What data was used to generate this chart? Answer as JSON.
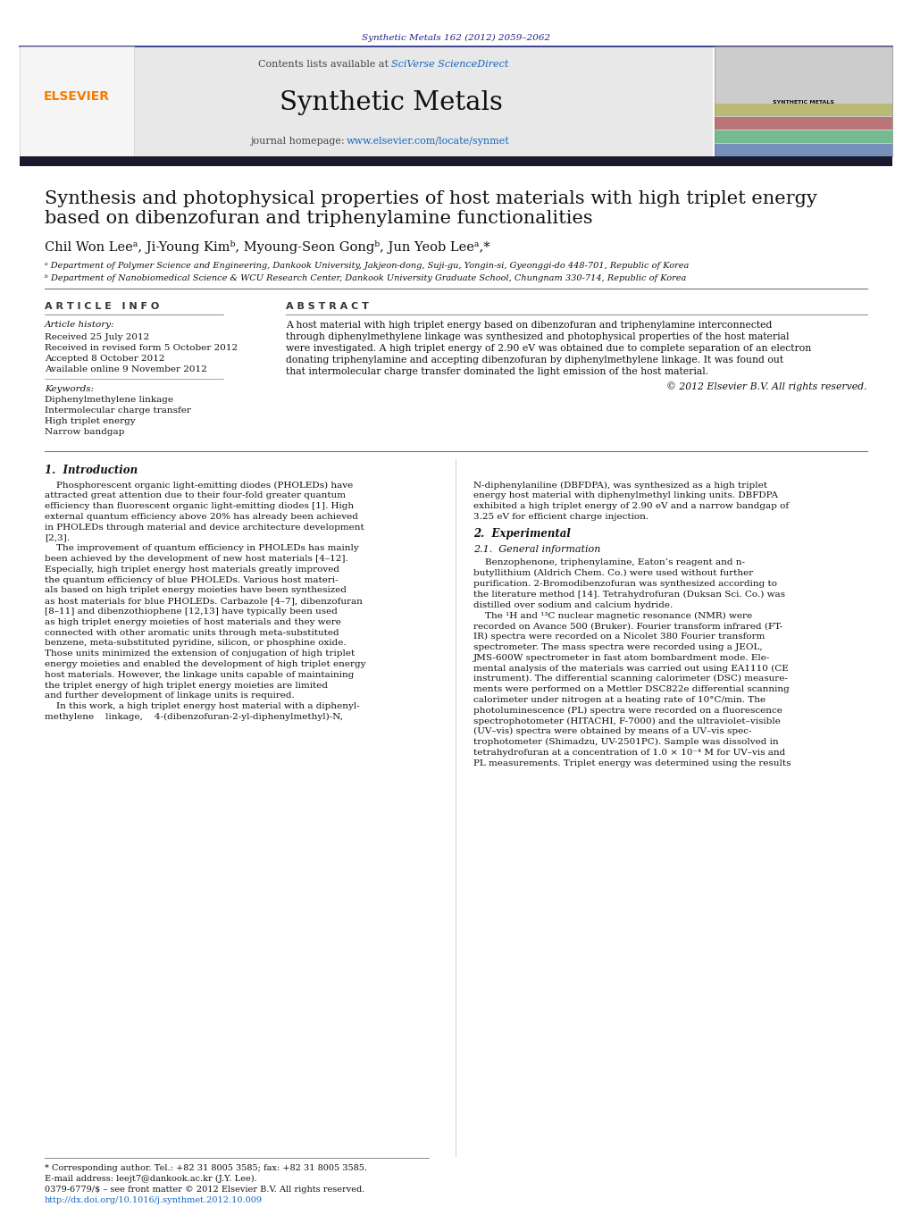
{
  "bg_color": "#ffffff",
  "top_journal_ref": "Synthetic Metals 162 (2012) 2059–2062",
  "top_journal_ref_color": "#1a237e",
  "header_bg": "#e8e8e8",
  "header_border_color": "#1a237e",
  "elsevier_color": "#f57c00",
  "journal_name": "Synthetic Metals",
  "journal_url": "www.elsevier.com/locate/synmet",
  "journal_url_color": "#1565c0",
  "contents_text": "Contents lists available at ",
  "sciverse_text": "SciVerse ScienceDirect",
  "sciverse_color": "#1565c0",
  "dark_bar_color": "#1a1a2e",
  "article_title_line1": "Synthesis and photophysical properties of host materials with high triplet energy",
  "article_title_line2": "based on dibenzofuran and triphenylamine functionalities",
  "authors_full": "Chil Won Leeᵃ, Ji-Young Kimᵇ, Myoung-Seon Gongᵇ, Jun Yeob Leeᵃ,*",
  "affil_a": "ᵃ Department of Polymer Science and Engineering, Dankook University, Jakjeon-dong, Suji-gu, Yongin-si, Gyeonggi-do 448-701, Republic of Korea",
  "affil_b": "ᵇ Department of Nanobiomedical Science & WCU Research Center, Dankook University Graduate School, Chungnam 330-714, Republic of Korea",
  "section_article_info": "A R T I C L E   I N F O",
  "section_abstract": "A B S T R A C T",
  "article_history_label": "Article history:",
  "received1": "Received 25 July 2012",
  "received2": "Received in revised form 5 October 2012",
  "accepted": "Accepted 8 October 2012",
  "available": "Available online 9 November 2012",
  "keywords_label": "Keywords:",
  "keyword1": "Diphenylmethylene linkage",
  "keyword2": "Intermolecular charge transfer",
  "keyword3": "High triplet energy",
  "keyword4": "Narrow bandgap",
  "abstract_lines": [
    "A host material with high triplet energy based on dibenzofuran and triphenylamine interconnected",
    "through diphenylmethylene linkage was synthesized and photophysical properties of the host material",
    "were investigated. A high triplet energy of 2.90 eV was obtained due to complete separation of an electron",
    "donating triphenylamine and accepting dibenzofuran by diphenylmethylene linkage. It was found out",
    "that intermolecular charge transfer dominated the light emission of the host material."
  ],
  "copyright": "© 2012 Elsevier B.V. All rights reserved.",
  "section1_title": "1.  Introduction",
  "intro_col1_lines": [
    "    Phosphorescent organic light-emitting diodes (PHOLEDs) have",
    "attracted great attention due to their four-fold greater quantum",
    "efficiency than fluorescent organic light-emitting diodes [1]. High",
    "external quantum efficiency above 20% has already been achieved",
    "in PHOLEDs through material and device architecture development",
    "[2,3].",
    "    The improvement of quantum efficiency in PHOLEDs has mainly",
    "been achieved by the development of new host materials [4–12].",
    "Especially, high triplet energy host materials greatly improved",
    "the quantum efficiency of blue PHOLEDs. Various host materi-",
    "als based on high triplet energy moieties have been synthesized",
    "as host materials for blue PHOLEDs. Carbazole [4–7], dibenzofuran",
    "[8–11] and dibenzothiophene [12,13] have typically been used",
    "as high triplet energy moieties of host materials and they were",
    "connected with other aromatic units through meta-substituted",
    "benzene, meta-substituted pyridine, silicon, or phosphine oxide.",
    "Those units minimized the extension of conjugation of high triplet",
    "energy moieties and enabled the development of high triplet energy",
    "host materials. However, the linkage units capable of maintaining",
    "the triplet energy of high triplet energy moieties are limited",
    "and further development of linkage units is required.",
    "    In this work, a high triplet energy host material with a diphenyl-",
    "methylene    linkage,    4-(dibenzofuran-2-yl-diphenylmethyl)-N,"
  ],
  "intro_col2_lines": [
    "N-diphenylaniline (DBFDPA), was synthesized as a high triplet",
    "energy host material with diphenylmethyl linking units. DBFDPA",
    "exhibited a high triplet energy of 2.90 eV and a narrow bandgap of",
    "3.25 eV for efficient charge injection."
  ],
  "section2_title": "2.  Experimental",
  "section21_title": "2.1.  General information",
  "exp_col2_lines": [
    "    Benzophenone, triphenylamine, Eaton’s reagent and n-",
    "butyllithium (Aldrich Chem. Co.) were used without further",
    "purification. 2-Bromodibenzofuran was synthesized according to",
    "the literature method [14]. Tetrahydrofuran (Duksan Sci. Co.) was",
    "distilled over sodium and calcium hydride.",
    "    The ¹H and ¹³C nuclear magnetic resonance (NMR) were",
    "recorded on Avance 500 (Bruker). Fourier transform infrared (FT-",
    "IR) spectra were recorded on a Nicolet 380 Fourier transform",
    "spectrometer. The mass spectra were recorded using a JEOL,",
    "JMS-600W spectrometer in fast atom bombardment mode. Ele-",
    "mental analysis of the materials was carried out using EA1110 (CE",
    "instrument). The differential scanning calorimeter (DSC) measure-",
    "ments were performed on a Mettler DSC822e differential scanning",
    "calorimeter under nitrogen at a heating rate of 10°C/min. The",
    "photoluminescence (PL) spectra were recorded on a fluorescence",
    "spectrophotometer (HITACHI, F-7000) and the ultraviolet–visible",
    "(UV–vis) spectra were obtained by means of a UV–vis spec-",
    "trophotometer (Shimadzu, UV-2501PC). Sample was dissolved in",
    "tetrahydrofuran at a concentration of 1.0 × 10⁻⁴ M for UV–vis and",
    "PL measurements. Triplet energy was determined using the results"
  ],
  "footnote_star": "* Corresponding author. Tel.: +82 31 8005 3585; fax: +82 31 8005 3585.",
  "footnote_email": "E-mail address: leejt7@dankook.ac.kr (J.Y. Lee).",
  "footnote_issn": "0379-6779/$ – see front matter © 2012 Elsevier B.V. All rights reserved.",
  "footnote_doi": "http://dx.doi.org/10.1016/j.synthmet.2012.10.009",
  "ref_link_color": "#1565c0"
}
